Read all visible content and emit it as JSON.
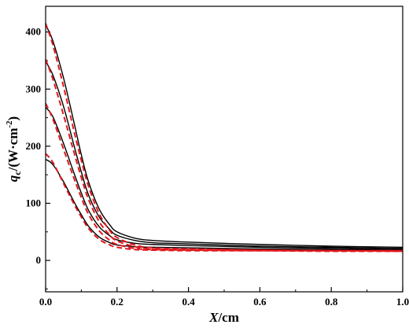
{
  "chart_data": {
    "type": "line",
    "title": "",
    "xlabel": {
      "var": "X",
      "unit": "/cm"
    },
    "ylabel": {
      "var": "q",
      "sub": "c",
      "unit_prefix": "/(W·cm",
      "sup": "-2",
      "unit_suffix": ")"
    },
    "xlim": [
      0,
      1.0
    ],
    "ylim": [
      -55,
      445
    ],
    "x_ticks": [
      0.0,
      0.2,
      0.4,
      0.6,
      0.8,
      1.0
    ],
    "x_tick_labels": [
      "0.0",
      "0.2",
      "0.4",
      "0.6",
      "0.8",
      "1.0"
    ],
    "y_ticks": [
      0,
      100,
      200,
      300,
      400
    ],
    "y_tick_labels": [
      "0",
      "100",
      "200",
      "300",
      "400"
    ],
    "grid": false,
    "legend": "none",
    "colors": {
      "solid": "#000000",
      "dashed": "#e0191e"
    },
    "series": [
      {
        "style": "solid",
        "points": [
          [
            0,
            412
          ],
          [
            0.02,
            385
          ],
          [
            0.05,
            320
          ],
          [
            0.08,
            240
          ],
          [
            0.1,
            185
          ],
          [
            0.12,
            138
          ],
          [
            0.15,
            90
          ],
          [
            0.18,
            62
          ],
          [
            0.2,
            50
          ],
          [
            0.25,
            39
          ],
          [
            0.3,
            35
          ],
          [
            0.4,
            32
          ],
          [
            0.6,
            28
          ],
          [
            0.8,
            25
          ],
          [
            1.0,
            23
          ]
        ]
      },
      {
        "style": "solid",
        "points": [
          [
            0,
            348
          ],
          [
            0.02,
            325
          ],
          [
            0.05,
            270
          ],
          [
            0.08,
            200
          ],
          [
            0.1,
            155
          ],
          [
            0.12,
            115
          ],
          [
            0.15,
            76
          ],
          [
            0.18,
            54
          ],
          [
            0.2,
            44
          ],
          [
            0.25,
            35
          ],
          [
            0.3,
            31
          ],
          [
            0.4,
            29
          ],
          [
            0.6,
            25
          ],
          [
            0.8,
            23
          ],
          [
            1.0,
            21
          ]
        ]
      },
      {
        "style": "solid",
        "points": [
          [
            0,
            268
          ],
          [
            0.02,
            252
          ],
          [
            0.05,
            205
          ],
          [
            0.08,
            152
          ],
          [
            0.1,
            118
          ],
          [
            0.12,
            88
          ],
          [
            0.15,
            59
          ],
          [
            0.18,
            43
          ],
          [
            0.2,
            36
          ],
          [
            0.25,
            30
          ],
          [
            0.3,
            28
          ],
          [
            0.4,
            26
          ],
          [
            0.6,
            23
          ],
          [
            0.8,
            21
          ],
          [
            1.0,
            19
          ]
        ]
      },
      {
        "style": "solid",
        "points": [
          [
            0,
            177
          ],
          [
            0.02,
            168
          ],
          [
            0.05,
            138
          ],
          [
            0.08,
            102
          ],
          [
            0.1,
            80
          ],
          [
            0.12,
            60
          ],
          [
            0.15,
            41
          ],
          [
            0.18,
            31
          ],
          [
            0.2,
            27
          ],
          [
            0.25,
            24
          ],
          [
            0.3,
            23
          ],
          [
            0.4,
            22
          ],
          [
            0.6,
            20
          ],
          [
            0.8,
            19
          ],
          [
            1.0,
            18
          ]
        ]
      },
      {
        "style": "dashed",
        "points": [
          [
            0,
            415
          ],
          [
            0.02,
            378
          ],
          [
            0.05,
            305
          ],
          [
            0.08,
            225
          ],
          [
            0.1,
            175
          ],
          [
            0.12,
            130
          ],
          [
            0.15,
            82
          ],
          [
            0.18,
            52
          ],
          [
            0.2,
            40
          ],
          [
            0.25,
            27
          ],
          [
            0.3,
            22
          ],
          [
            0.4,
            20
          ],
          [
            0.6,
            18
          ],
          [
            0.8,
            17
          ],
          [
            1.0,
            17
          ]
        ]
      },
      {
        "style": "dashed",
        "points": [
          [
            0,
            352
          ],
          [
            0.02,
            318
          ],
          [
            0.05,
            255
          ],
          [
            0.08,
            188
          ],
          [
            0.1,
            145
          ],
          [
            0.12,
            107
          ],
          [
            0.15,
            68
          ],
          [
            0.18,
            44
          ],
          [
            0.2,
            34
          ],
          [
            0.25,
            24
          ],
          [
            0.3,
            20
          ],
          [
            0.4,
            19
          ],
          [
            0.6,
            18
          ],
          [
            0.8,
            17
          ],
          [
            1.0,
            17
          ]
        ]
      },
      {
        "style": "dashed",
        "points": [
          [
            0,
            275
          ],
          [
            0.02,
            248
          ],
          [
            0.05,
            195
          ],
          [
            0.08,
            143
          ],
          [
            0.1,
            110
          ],
          [
            0.12,
            81
          ],
          [
            0.15,
            52
          ],
          [
            0.18,
            35
          ],
          [
            0.2,
            28
          ],
          [
            0.25,
            21
          ],
          [
            0.3,
            19
          ],
          [
            0.4,
            18
          ],
          [
            0.6,
            17
          ],
          [
            0.8,
            17
          ],
          [
            1.0,
            16
          ]
        ]
      },
      {
        "style": "dashed",
        "points": [
          [
            0,
            187
          ],
          [
            0.02,
            172
          ],
          [
            0.05,
            135
          ],
          [
            0.08,
            98
          ],
          [
            0.1,
            76
          ],
          [
            0.12,
            56
          ],
          [
            0.15,
            37
          ],
          [
            0.18,
            27
          ],
          [
            0.2,
            23
          ],
          [
            0.25,
            19
          ],
          [
            0.3,
            18
          ],
          [
            0.4,
            17
          ],
          [
            0.6,
            17
          ],
          [
            0.8,
            16
          ],
          [
            1.0,
            16
          ]
        ]
      }
    ]
  }
}
